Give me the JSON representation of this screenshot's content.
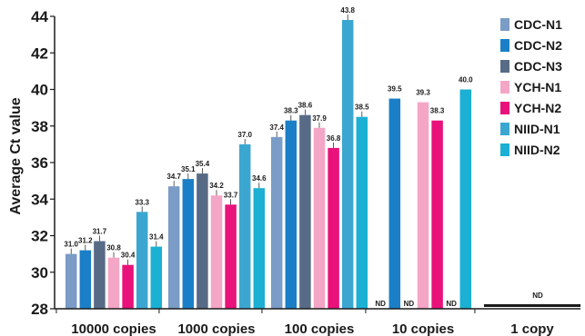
{
  "chart_data": {
    "type": "bar",
    "ylabel": "Average Ct value",
    "xlabel": "",
    "ylim": [
      28,
      44
    ],
    "yticks": [
      28,
      30,
      32,
      34,
      36,
      38,
      40,
      42,
      44
    ],
    "categories": [
      "10000 copies",
      "1000 copies",
      "100 copies",
      "10 copies",
      "1 copy"
    ],
    "legend_position": "right",
    "series": [
      {
        "name": "CDC-N1",
        "color": "#7a9cc6",
        "values": [
          31.0,
          34.7,
          37.4,
          null,
          null
        ],
        "labels": [
          "31.0",
          "34.7",
          "37.4",
          "ND",
          "ND"
        ]
      },
      {
        "name": "CDC-N2",
        "color": "#1a7fc6",
        "values": [
          31.2,
          35.1,
          38.3,
          39.5,
          null
        ],
        "labels": [
          "31.2",
          "35.1",
          "38.3",
          "39.5",
          "ND"
        ]
      },
      {
        "name": "CDC-N3",
        "color": "#586b86",
        "values": [
          31.7,
          35.4,
          38.6,
          null,
          null
        ],
        "labels": [
          "31.7",
          "35.4",
          "38.6",
          "ND",
          "ND"
        ]
      },
      {
        "name": "YCH-N1",
        "color": "#f4a6c6",
        "values": [
          30.8,
          34.2,
          37.9,
          39.3,
          null
        ],
        "labels": [
          "30.8",
          "34.2",
          "37.9",
          "39.3",
          "ND"
        ]
      },
      {
        "name": "YCH-N2",
        "color": "#e8127a",
        "values": [
          30.4,
          33.7,
          36.8,
          38.3,
          null
        ],
        "labels": [
          "30.4",
          "33.7",
          "36.8",
          "38.3",
          "ND"
        ]
      },
      {
        "name": "NIID-N1",
        "color": "#3ba7d0",
        "values": [
          33.3,
          37.0,
          43.8,
          null,
          null
        ],
        "labels": [
          "33.3",
          "37.0",
          "43.8",
          "ND",
          "ND"
        ]
      },
      {
        "name": "NIID-N2",
        "color": "#1bb0d4",
        "values": [
          31.4,
          34.6,
          38.5,
          40.0,
          null
        ],
        "labels": [
          "31.4",
          "34.6",
          "38.5",
          "40.0",
          "ND"
        ]
      }
    ],
    "annotations": [
      {
        "text": "ND",
        "category": "10 copies",
        "series": "CDC-N1"
      },
      {
        "text": "ND",
        "category": "10 copies",
        "series": "CDC-N3"
      },
      {
        "text": "ND",
        "category": "10 copies",
        "series": "NIID-N1"
      },
      {
        "text": "ND",
        "category": "1 copy",
        "series": "all"
      }
    ]
  }
}
